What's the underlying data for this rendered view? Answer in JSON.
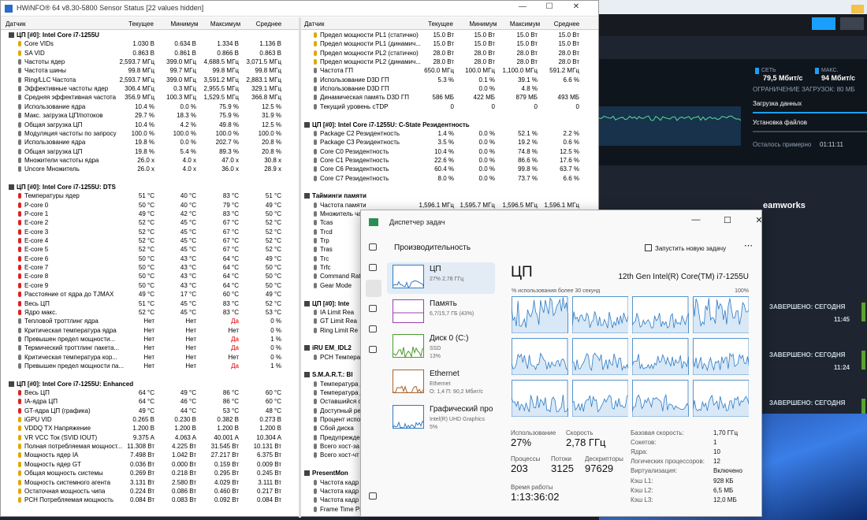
{
  "hwinfo": {
    "title": "HWiNFO® 64 v8.30-5800 Sensor Status [22 values hidden]",
    "columns": [
      "Датчик",
      "Текущее",
      "Минимум",
      "Максимум",
      "Среднее"
    ],
    "left": [
      {
        "title": "ЦП [#0]: Intel Core i7-1255U",
        "rows": [
          [
            "Core VIDs",
            "1.030 В",
            "0.634 В",
            "1.334 В",
            "1.136 В"
          ],
          [
            "SA VID",
            "0.863 В",
            "0.861 В",
            "0.866 В",
            "0.863 В"
          ],
          [
            "Частоты ядер",
            "2,593.7 МГц",
            "399.0 МГц",
            "4,688.5 МГц",
            "3,071.5 МГц"
          ],
          [
            "Частота шины",
            "99.8 МГц",
            "99.7 МГц",
            "99.8 МГц",
            "99.8 МГц"
          ],
          [
            "Ring/LLC Частота",
            "2,593.7 МГц",
            "399.0 МГц",
            "3,591.2 МГц",
            "2,883.1 МГц"
          ],
          [
            "Эффективные частоты ядер",
            "306.4 МГц",
            "0.3 МГц",
            "2,955.5 МГц",
            "329.1 МГц"
          ],
          [
            "Средняя эффективная частота",
            "356.9 МГц",
            "100.3 МГц",
            "1,529.5 МГц",
            "366.8 МГц"
          ],
          [
            "Использование ядра",
            "10.4 %",
            "0.0 %",
            "75.9 %",
            "12.5 %"
          ],
          [
            "Макс. загрузка ЦП/потоков",
            "29.7 %",
            "18.3 %",
            "75.9 %",
            "31.9 %"
          ],
          [
            "Общая загрузка ЦП",
            "10.4 %",
            "4.2 %",
            "49.8 %",
            "12.5 %"
          ],
          [
            "Модуляция частоты по запросу",
            "100.0 %",
            "100.0 %",
            "100.0 %",
            "100.0 %"
          ],
          [
            "Использование ядра",
            "19.8 %",
            "0.0 %",
            "202.7 %",
            "20.8 %"
          ],
          [
            "Общая загрузка ЦП",
            "19.8 %",
            "5.4 %",
            "89.3 %",
            "20.8 %"
          ],
          [
            "Множители частоты ядра",
            "26.0 x",
            "4.0 x",
            "47.0 x",
            "30.8 x"
          ],
          [
            "Uncore Множитель",
            "26.0 x",
            "4.0 x",
            "36.0 x",
            "28.9 x"
          ]
        ]
      },
      {
        "title": "ЦП [#0]: Intel Core i7-1255U: DTS",
        "rows": [
          [
            "Температуры ядер",
            "51 °C",
            "40 °C",
            "83 °C",
            "51 °C"
          ],
          [
            "P-core 0",
            "50 °C",
            "40 °C",
            "79 °C",
            "49 °C"
          ],
          [
            "P-core 1",
            "49 °C",
            "42 °C",
            "83 °C",
            "50 °C"
          ],
          [
            "E-core 2",
            "52 °C",
            "45 °C",
            "67 °C",
            "52 °C"
          ],
          [
            "E-core 3",
            "52 °C",
            "45 °C",
            "67 °C",
            "52 °C"
          ],
          [
            "E-core 4",
            "52 °C",
            "45 °C",
            "67 °C",
            "52 °C"
          ],
          [
            "E-core 5",
            "52 °C",
            "45 °C",
            "67 °C",
            "52 °C"
          ],
          [
            "E-core 6",
            "50 °C",
            "43 °C",
            "64 °C",
            "49 °C"
          ],
          [
            "E-core 7",
            "50 °C",
            "43 °C",
            "64 °C",
            "50 °C"
          ],
          [
            "E-core 8",
            "50 °C",
            "43 °C",
            "64 °C",
            "50 °C"
          ],
          [
            "E-core 9",
            "50 °C",
            "43 °C",
            "64 °C",
            "50 °C"
          ],
          [
            "Расстояние от ядра до TJMAX",
            "49 °C",
            "17 °C",
            "60 °C",
            "49 °C"
          ],
          [
            "Весь ЦП",
            "51 °C",
            "45 °C",
            "83 °C",
            "52 °C"
          ],
          [
            "Ядро макс.",
            "52 °C",
            "45 °C",
            "83 °C",
            "53 °C"
          ],
          [
            "Тепловой троттлинг ядра",
            "Нет",
            "Нет",
            "Да",
            "0 %"
          ],
          [
            "Критическая температура ядра",
            "Нет",
            "Нет",
            "Нет",
            "0 %"
          ],
          [
            "Превышен предел мощности...",
            "Нет",
            "Нет",
            "Да",
            "1 %"
          ],
          [
            "Термический троттлинг пакета...",
            "Нет",
            "Нет",
            "Да",
            "0 %"
          ],
          [
            "Критическая температура кор...",
            "Нет",
            "Нет",
            "Нет",
            "0 %"
          ],
          [
            "Превышен предел мощности па...",
            "Нет",
            "Нет",
            "Да",
            "1 %"
          ]
        ]
      },
      {
        "title": "ЦП [#0]: Intel Core i7-1255U: Enhanced",
        "rows": [
          [
            "Весь ЦП",
            "64 °C",
            "49 °C",
            "86 °C",
            "60 °C"
          ],
          [
            "IA-ядра ЦП",
            "64 °C",
            "46 °C",
            "86 °C",
            "60 °C"
          ],
          [
            "GT-ядра ЦП (графика)",
            "49 °C",
            "44 °C",
            "53 °C",
            "48 °C"
          ],
          [
            "iGPU VID",
            "0.265 В",
            "0.230 В",
            "0.382 В",
            "0.273 В"
          ],
          [
            "VDDQ TX Напряжение",
            "1.200 В",
            "1.200 В",
            "1.200 В",
            "1.200 В"
          ],
          [
            "VR VCC Ток (SVID IOUT)",
            "9.375 A",
            "4.063 A",
            "40.001 A",
            "10.304 A"
          ],
          [
            "Полная потребляемая мощност...",
            "11.308 Вт",
            "4.225 Вт",
            "31.545 Вт",
            "10.131 Вт"
          ],
          [
            "Мощность ядер IA",
            "7.498 Вт",
            "1.042 Вт",
            "27.217 Вт",
            "6.375 Вт"
          ],
          [
            "Мощность ядер GT",
            "0.036 Вт",
            "0.000 Вт",
            "0.159 Вт",
            "0.009 Вт"
          ],
          [
            "Общая мощность системы",
            "0.269 Вт",
            "0.218 Вт",
            "0.295 Вт",
            "0.245 Вт"
          ],
          [
            "Мощность системного агента",
            "3.131 Вт",
            "2.580 Вт",
            "4.029 Вт",
            "3.111 Вт"
          ],
          [
            "Остаточная мощность чипа",
            "0.224 Вт",
            "0.086 Вт",
            "0.460 Вт",
            "0.217 Вт"
          ],
          [
            "PCH Потребляемая мощность",
            "0.084 Вт",
            "0.083 Вт",
            "0.092 Вт",
            "0.084 Вт"
          ]
        ]
      }
    ],
    "right": [
      {
        "rows": [
          [
            "Предел мощности PL1 (статично)",
            "15.0 Вт",
            "15.0 Вт",
            "15.0 Вт",
            "15.0 Вт"
          ],
          [
            "Предел мощности PL1 (динамич...",
            "15.0 Вт",
            "15.0 Вт",
            "15.0 Вт",
            "15.0 Вт"
          ],
          [
            "Предел мощности PL2 (статично)",
            "28.0 Вт",
            "28.0 Вт",
            "28.0 Вт",
            "28.0 Вт"
          ],
          [
            "Предел мощности PL2 (динамич...",
            "28.0 Вт",
            "28.0 Вт",
            "28.0 Вт",
            "28.0 Вт"
          ],
          [
            "Частота ГП",
            "650.0 МГц",
            "100.0 МГц",
            "1,100.0 МГц",
            "591.2 МГц"
          ],
          [
            "Использование D3D ГП",
            "5.3 %",
            "0.1 %",
            "39.1 %",
            "6.6 %"
          ],
          [
            "Использование D3D ГП",
            null,
            "0.0 %",
            "4.8 %",
            null
          ],
          [
            "Динамическая память D3D ГП",
            "586 МБ",
            "422 МБ",
            "879 МБ",
            "493 МБ"
          ],
          [
            "Текущий уровень cTDP",
            "0",
            "0",
            "0",
            "0"
          ]
        ]
      },
      {
        "title": "ЦП [#0]: Intel Core i7-1255U: C-State Резидентность",
        "rows": [
          [
            "Package C2 Резидентность",
            "1.4 %",
            "0.0 %",
            "52.1 %",
            "2.2 %"
          ],
          [
            "Package C3 Резидентность",
            "3.5 %",
            "0.0 %",
            "19.2 %",
            "0.6 %"
          ],
          [
            "Core C0 Резидентность",
            "10.4 %",
            "0.0 %",
            "74.8 %",
            "12.5 %"
          ],
          [
            "Core C1 Резидентность",
            "22.6 %",
            "0.0 %",
            "86.6 %",
            "17.6 %"
          ],
          [
            "Core C6 Резидентность",
            "60.4 %",
            "0.0 %",
            "99.8 %",
            "63.7 %"
          ],
          [
            "Core C7 Резидентность",
            "8.0 %",
            "0.0 %",
            "73.7 %",
            "6.6 %"
          ]
        ]
      },
      {
        "title": "Тайминги памяти",
        "rows": [
          [
            "Частота памяти",
            "1,596.1 МГц",
            "1,595.7 МГц",
            "1,596.5 МГц",
            "1,596.1 МГц"
          ],
          [
            "Множитель ча"
          ],
          [
            "Tcas"
          ],
          [
            "Trcd"
          ],
          [
            "Trp"
          ],
          [
            "Tras"
          ],
          [
            "Trc"
          ],
          [
            "Trfc"
          ],
          [
            "Command Rate"
          ],
          [
            "Gear Mode"
          ]
        ]
      },
      {
        "title": "ЦП [#0]: Inte",
        "rows": [
          [
            "IA Limit Rea"
          ],
          [
            "GT Limit Rea"
          ],
          [
            "Ring Limit Re"
          ]
        ]
      },
      {
        "title": "iRU EM_IDL2",
        "rows": [
          [
            "PCH Температ"
          ]
        ]
      },
      {
        "title": "S.M.A.R.T.: Bl",
        "rows": [
          [
            "Температура д"
          ],
          [
            "Температура д"
          ],
          [
            "Оставшийся ср"
          ],
          [
            "Доступный ре"
          ],
          [
            "Процент испо"
          ],
          [
            "Сбой диска"
          ],
          [
            "Предупрежде"
          ],
          [
            "Всего хост-за"
          ],
          [
            "Всего хост-чт"
          ]
        ]
      },
      {
        "title": "PresentMon",
        "rows": [
          [
            "Частота кадр"
          ],
          [
            "Частота кадр"
          ],
          [
            "Частота кадр"
          ],
          [
            "Frame Time Pr"
          ]
        ]
      }
    ]
  },
  "task_manager": {
    "title": "Диспетчер задач",
    "section": "Производительность",
    "new_task": "Запустить новую задачу",
    "sidebar": [
      {
        "name": "ЦП",
        "lines": [
          "27% 2,78 ГГц"
        ]
      },
      {
        "name": "Память",
        "lines": [
          "6,7/15,7 ГБ (43%)"
        ]
      },
      {
        "name": "Диск 0 (C:)",
        "lines": [
          "SSD",
          "13%"
        ]
      },
      {
        "name": "Ethernet",
        "lines": [
          "Ethernet",
          "О: 1,4 П: 90,2 Мбит/с"
        ]
      },
      {
        "name": "Графический про",
        "lines": [
          "Intel(R) UHD Graphics",
          "5%"
        ]
      }
    ],
    "heading": "ЦП",
    "model": "12th Gen Intel(R) Core(TM) i7-1255U",
    "graph_caption": "% использования более 30 секунд",
    "graph_max": "100%",
    "stats": [
      {
        "label": "Использование",
        "value": "27%"
      },
      {
        "label": "Скорость",
        "value": "2,78 ГГц"
      },
      {
        "label": "Процессы",
        "value": "203"
      },
      {
        "label": "Потоки",
        "value": "3125"
      },
      {
        "label": "Дескрипторы",
        "value": "97629"
      },
      {
        "label": "Время работы",
        "value": "1:13:36:02"
      }
    ],
    "details": [
      [
        "Базовая скорость:",
        "1,70 ГГц"
      ],
      [
        "Сокетов:",
        "1"
      ],
      [
        "Ядра:",
        "10"
      ],
      [
        "Логических процессоров:",
        "12"
      ],
      [
        "Виртуализация:",
        "Включено"
      ],
      [
        "Кэш L1:",
        "928 КБ"
      ],
      [
        "Кэш L2:",
        "6,5 МБ"
      ],
      [
        "Кэш L3:",
        "12,0 МБ"
      ]
    ]
  },
  "background_app": {
    "net_label": "СЕТЬ",
    "net_value": "79,5 Мбит/с",
    "max_label": "МАКС.",
    "max_value": "94 Мбит/с",
    "limit": "ОГРАНИЧЕНИЕ ЗАГРУЗОК: 80 МБ",
    "download": "Загрузка данных",
    "install": "Установка файлов",
    "remaining": "Осталось примерно",
    "remaining_time": "01:11:11",
    "partial_title": "eamworks",
    "completed": [
      {
        "label": "ЗАВЕРШЕНО: СЕГОДНЯ",
        "time": "11:45"
      },
      {
        "label": "ЗАВЕРШЕНО: СЕГОДНЯ",
        "time": "11:24"
      },
      {
        "label": "ЗАВЕРШЕНО: СЕГОДНЯ"
      }
    ]
  }
}
